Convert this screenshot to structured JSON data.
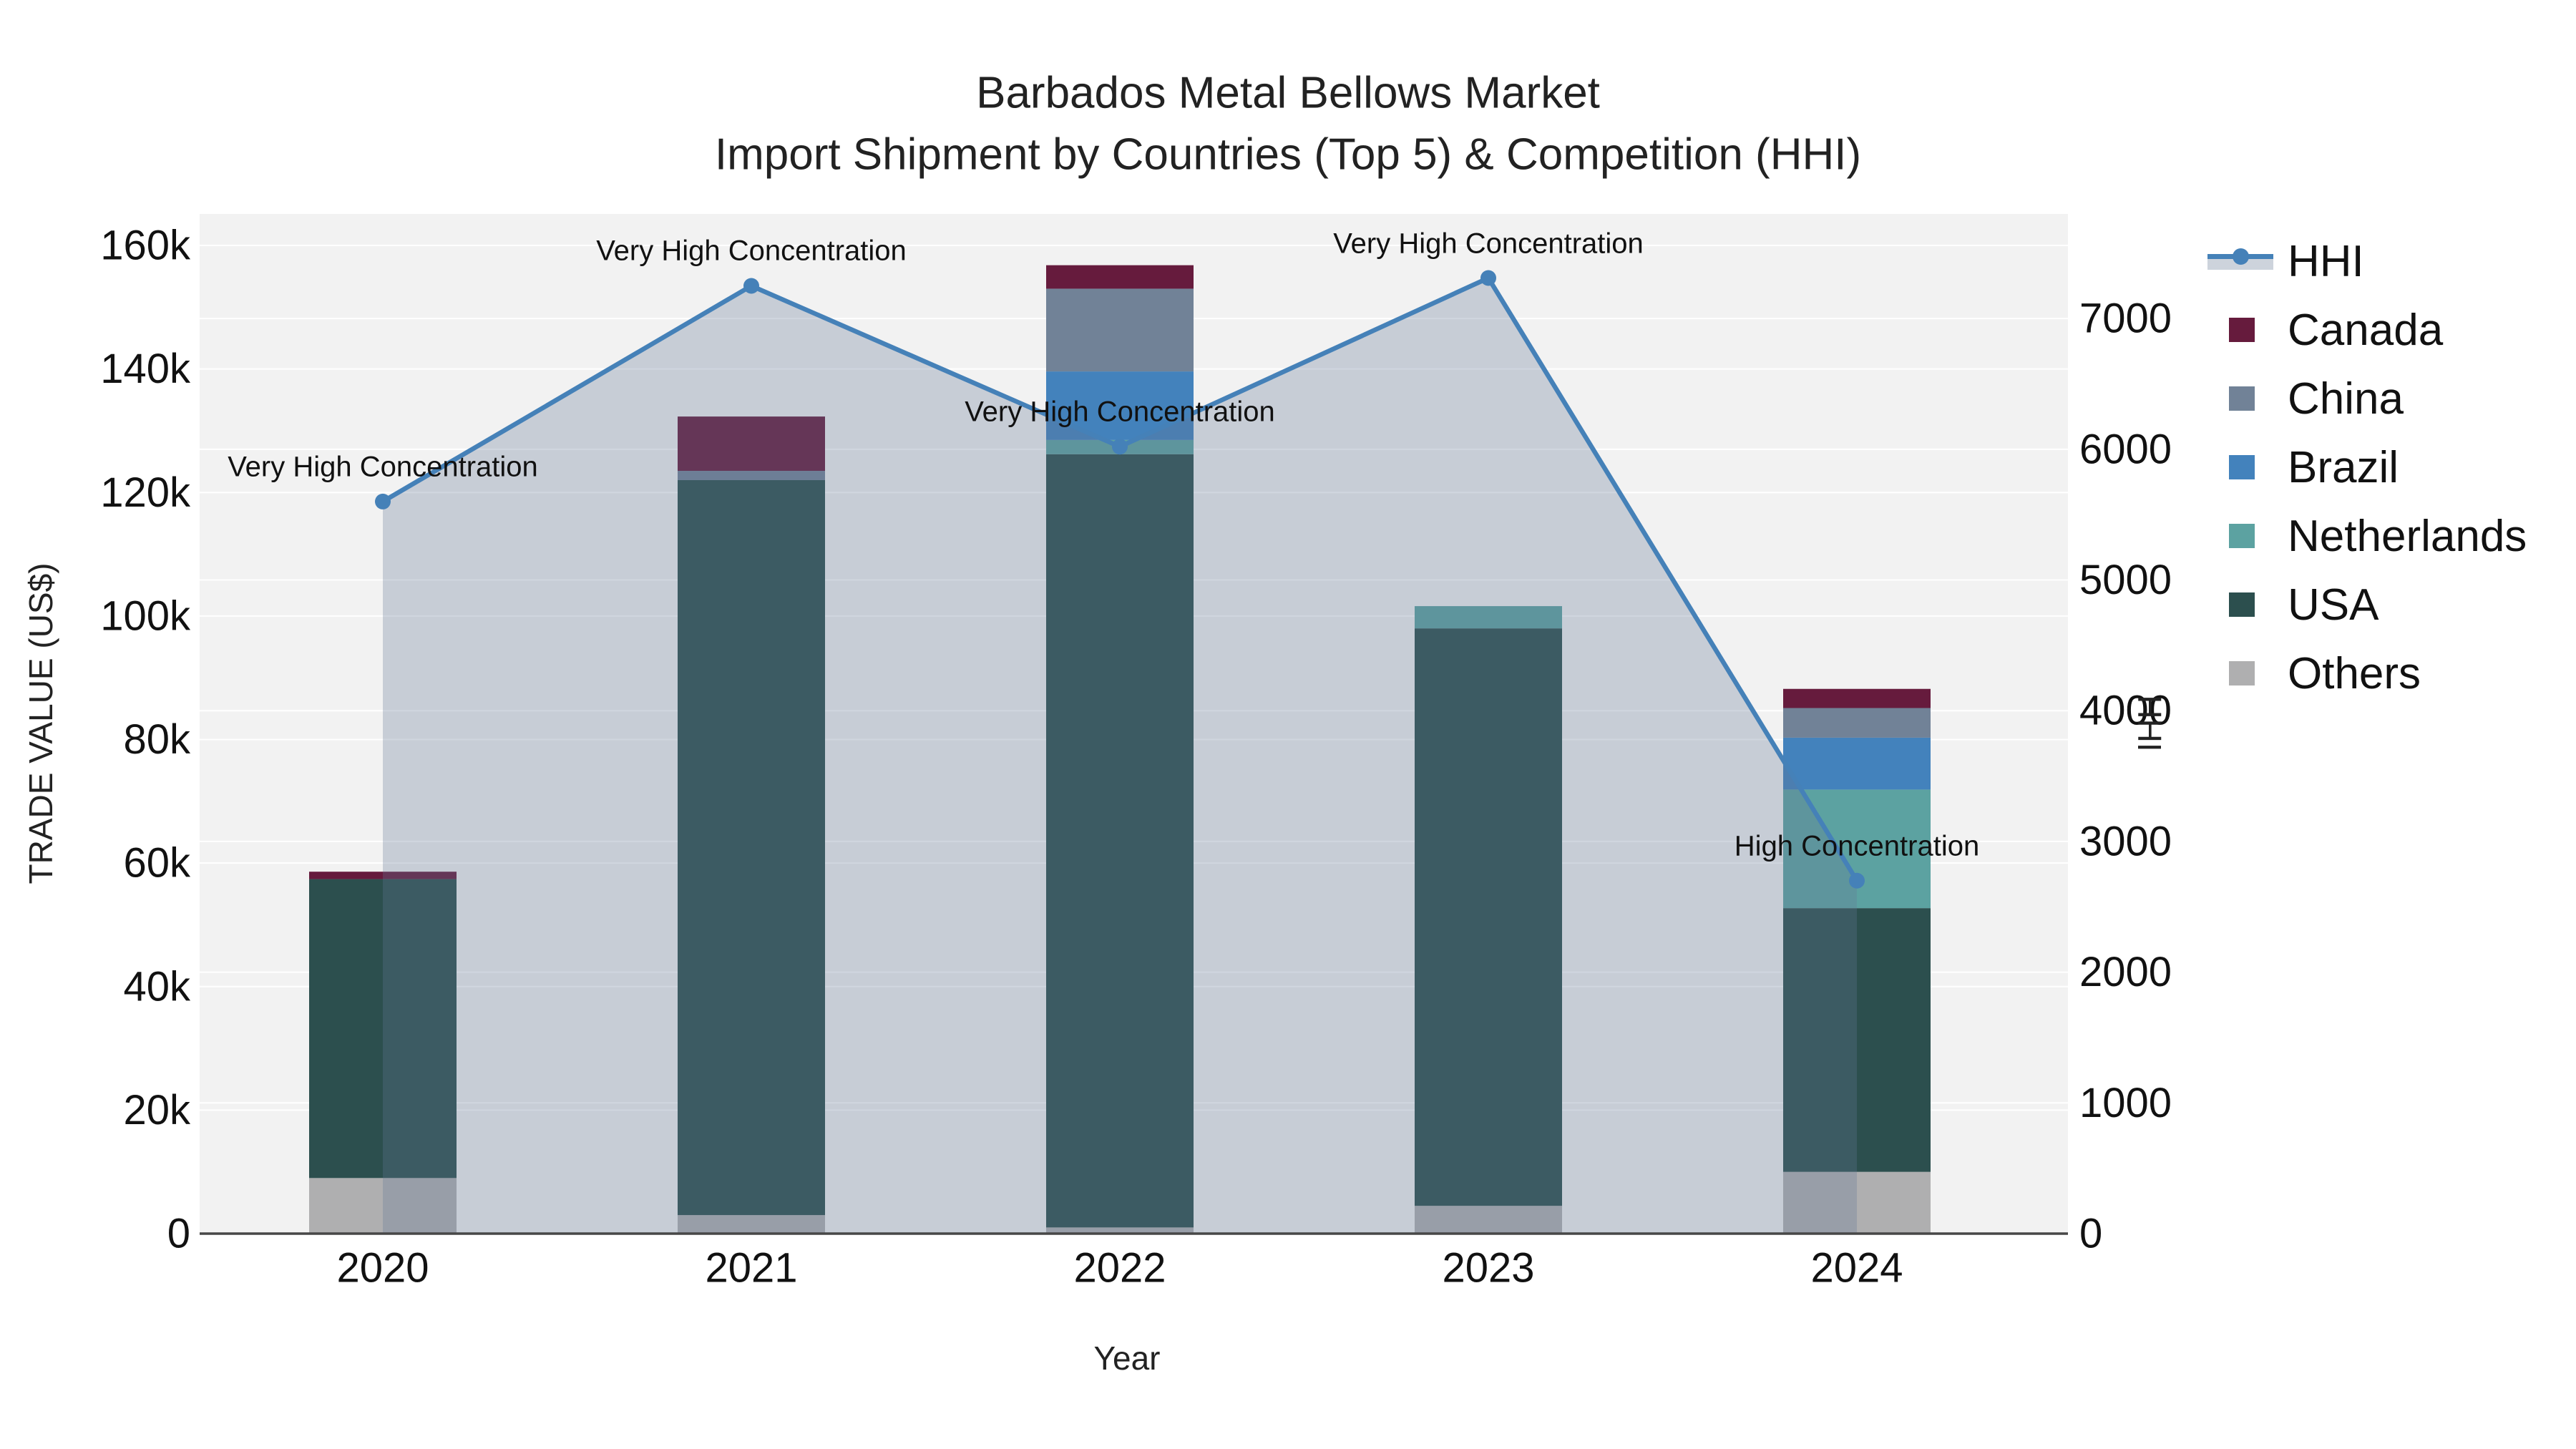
{
  "title": {
    "line1": "Barbados Metal Bellows Market",
    "line2": "Import Shipment by Countries (Top 5) & Competition (HHI)"
  },
  "chart_data": {
    "type": "combo_stacked_bar_line",
    "categories": [
      "2020",
      "2021",
      "2022",
      "2023",
      "2024"
    ],
    "bar_series": [
      {
        "name": "Others",
        "color": "#AFAFB0",
        "values": [
          9000,
          3000,
          1000,
          4500,
          10000
        ]
      },
      {
        "name": "USA",
        "color": "#2C4F4E",
        "values": [
          48400,
          119000,
          125200,
          93500,
          42700
        ]
      },
      {
        "name": "Netherlands",
        "color": "#5CA2A1",
        "values": [
          0,
          0,
          2300,
          3600,
          19200
        ]
      },
      {
        "name": "Brazil",
        "color": "#4382BC",
        "values": [
          0,
          0,
          11100,
          0,
          8400
        ]
      },
      {
        "name": "China",
        "color": "#718297",
        "values": [
          0,
          1500,
          13400,
          0,
          4800
        ]
      },
      {
        "name": "Canada",
        "color": "#661B3D",
        "values": [
          1200,
          8800,
          3800,
          0,
          3100
        ]
      }
    ],
    "line_series": {
      "name": "HHI",
      "color": "#4581B8",
      "area_fill": "rgba(100,120,150,0.30)",
      "legend_band_color": "#CDD3DC",
      "values": [
        5600,
        7250,
        6020,
        7310,
        2700
      ]
    },
    "annotations": [
      "Very High Concentration",
      "Very High Concentration",
      "Very High Concentration",
      "Very High Concentration",
      "High Concentration"
    ],
    "axes": {
      "left": {
        "title": "TRADE VALUE (US$)",
        "tick_labels": [
          "0",
          "20k",
          "40k",
          "60k",
          "80k",
          "100k",
          "120k",
          "140k",
          "160k"
        ],
        "tick_values": [
          0,
          20000,
          40000,
          60000,
          80000,
          100000,
          120000,
          140000,
          160000
        ],
        "range": [
          0,
          165100
        ]
      },
      "right": {
        "title": "HHI",
        "tick_labels": [
          "0",
          "1000",
          "2000",
          "3000",
          "4000",
          "5000",
          "6000",
          "7000"
        ],
        "tick_values": [
          0,
          1000,
          2000,
          3000,
          4000,
          5000,
          6000,
          7000
        ],
        "range": [
          0,
          7800
        ]
      },
      "x": {
        "title": "Year"
      }
    },
    "legend_order": [
      "HHI",
      "Canada",
      "China",
      "Brazil",
      "Netherlands",
      "USA",
      "Others"
    ],
    "style": {
      "plot_bg": "#F2F2F2",
      "grid_color": "#FFFFFF",
      "axis_line_color": "#474747",
      "tick_text_color": "#111111"
    }
  }
}
